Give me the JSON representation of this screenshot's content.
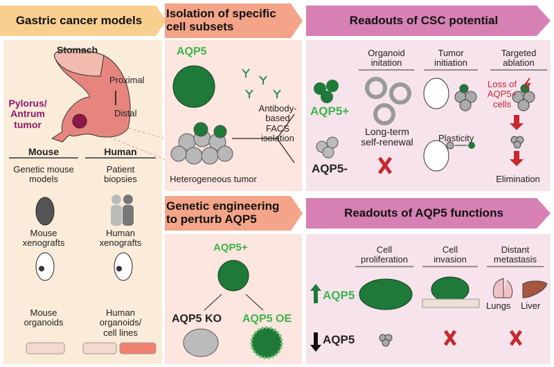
{
  "headers": {
    "models": "Gastric cancer models",
    "isolation": "Isolation of specific cell subsets",
    "csc": "Readouts of CSC potential",
    "engineering": "Genetic engineering to perturb AQP5",
    "functions": "Readouts of AQP5 functions"
  },
  "models": {
    "stomach": "Stomach",
    "proximal": "Proximal",
    "distal": "Distal",
    "tumor": "Pylorus/ Antrum tumor",
    "mouse": "Mouse",
    "human": "Human",
    "mouse_items": [
      "Genetic mouse models",
      "Mouse xenografts",
      "Mouse organoids"
    ],
    "human_items": [
      "Patient biopsies",
      "Human xenografts",
      "Human organoids/ cell lines"
    ]
  },
  "isolation": {
    "aqp5": "AQP5",
    "facs": "Antibody-based FACS isolation",
    "tumor": "Heterogeneous tumor"
  },
  "csc": {
    "pos": "AQP5+",
    "neg": "AQP5-",
    "columns": [
      "Organoid initation",
      "Tumor initiation",
      "Targeted ablation"
    ],
    "self_renewal": "Long-term self-renewal",
    "plasticity": "Plasticity",
    "loss": "Loss of AQP5+ cells",
    "elimination": "Elimination"
  },
  "engineering": {
    "pos": "AQP5+",
    "ko": "AQP5 KO",
    "oe": "AQP5 OE"
  },
  "functions": {
    "columns": [
      "Cell proliferation",
      "Cell invasion",
      "Distant metastasis"
    ],
    "up": "AQP5",
    "down": "AQP5",
    "lungs": "Lungs",
    "liver": "Liver"
  },
  "colors": {
    "green": "#1f7a3a",
    "light_green": "#3db34a",
    "red": "#c6282e",
    "tumor": "#8b1a4a"
  }
}
